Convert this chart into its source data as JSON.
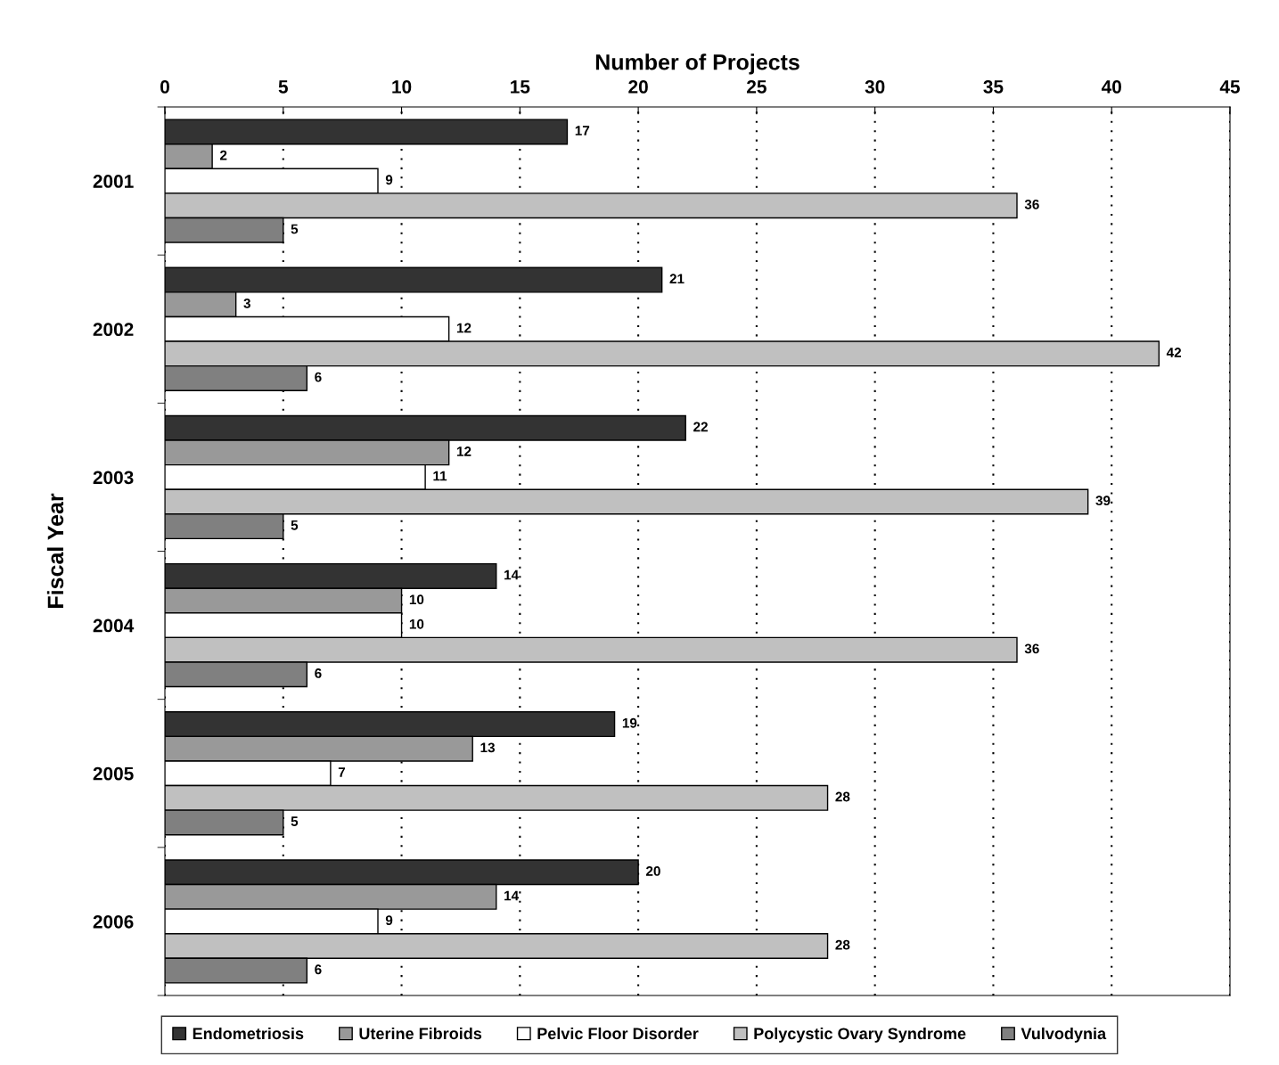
{
  "chart_data": {
    "type": "bar",
    "orientation": "horizontal",
    "xlabel": "Number of Projects",
    "ylabel": "Fiscal Year",
    "categories": [
      "2001",
      "2002",
      "2003",
      "2004",
      "2005",
      "2006"
    ],
    "series": [
      {
        "name": "Endometriosis",
        "color": "#333333",
        "values": [
          17,
          21,
          22,
          14,
          19,
          20
        ]
      },
      {
        "name": "Uterine Fibroids",
        "color": "#999999",
        "values": [
          2,
          3,
          12,
          10,
          13,
          14
        ]
      },
      {
        "name": "Pelvic Floor Disorder",
        "color": "#ffffff",
        "values": [
          9,
          12,
          11,
          10,
          7,
          9
        ]
      },
      {
        "name": "Polycystic Ovary Syndrome",
        "color": "#c0c0c0",
        "values": [
          36,
          42,
          39,
          36,
          28,
          28
        ]
      },
      {
        "name": "Vulvodynia",
        "color": "#808080",
        "values": [
          5,
          6,
          5,
          6,
          5,
          6
        ]
      }
    ],
    "xlim": [
      0,
      45
    ],
    "xticks": [
      0,
      5,
      10,
      15,
      20,
      25,
      30,
      35,
      40,
      45
    ],
    "grid": "x",
    "line_style": "dotted",
    "legend": "bottom",
    "data_labels": true
  }
}
